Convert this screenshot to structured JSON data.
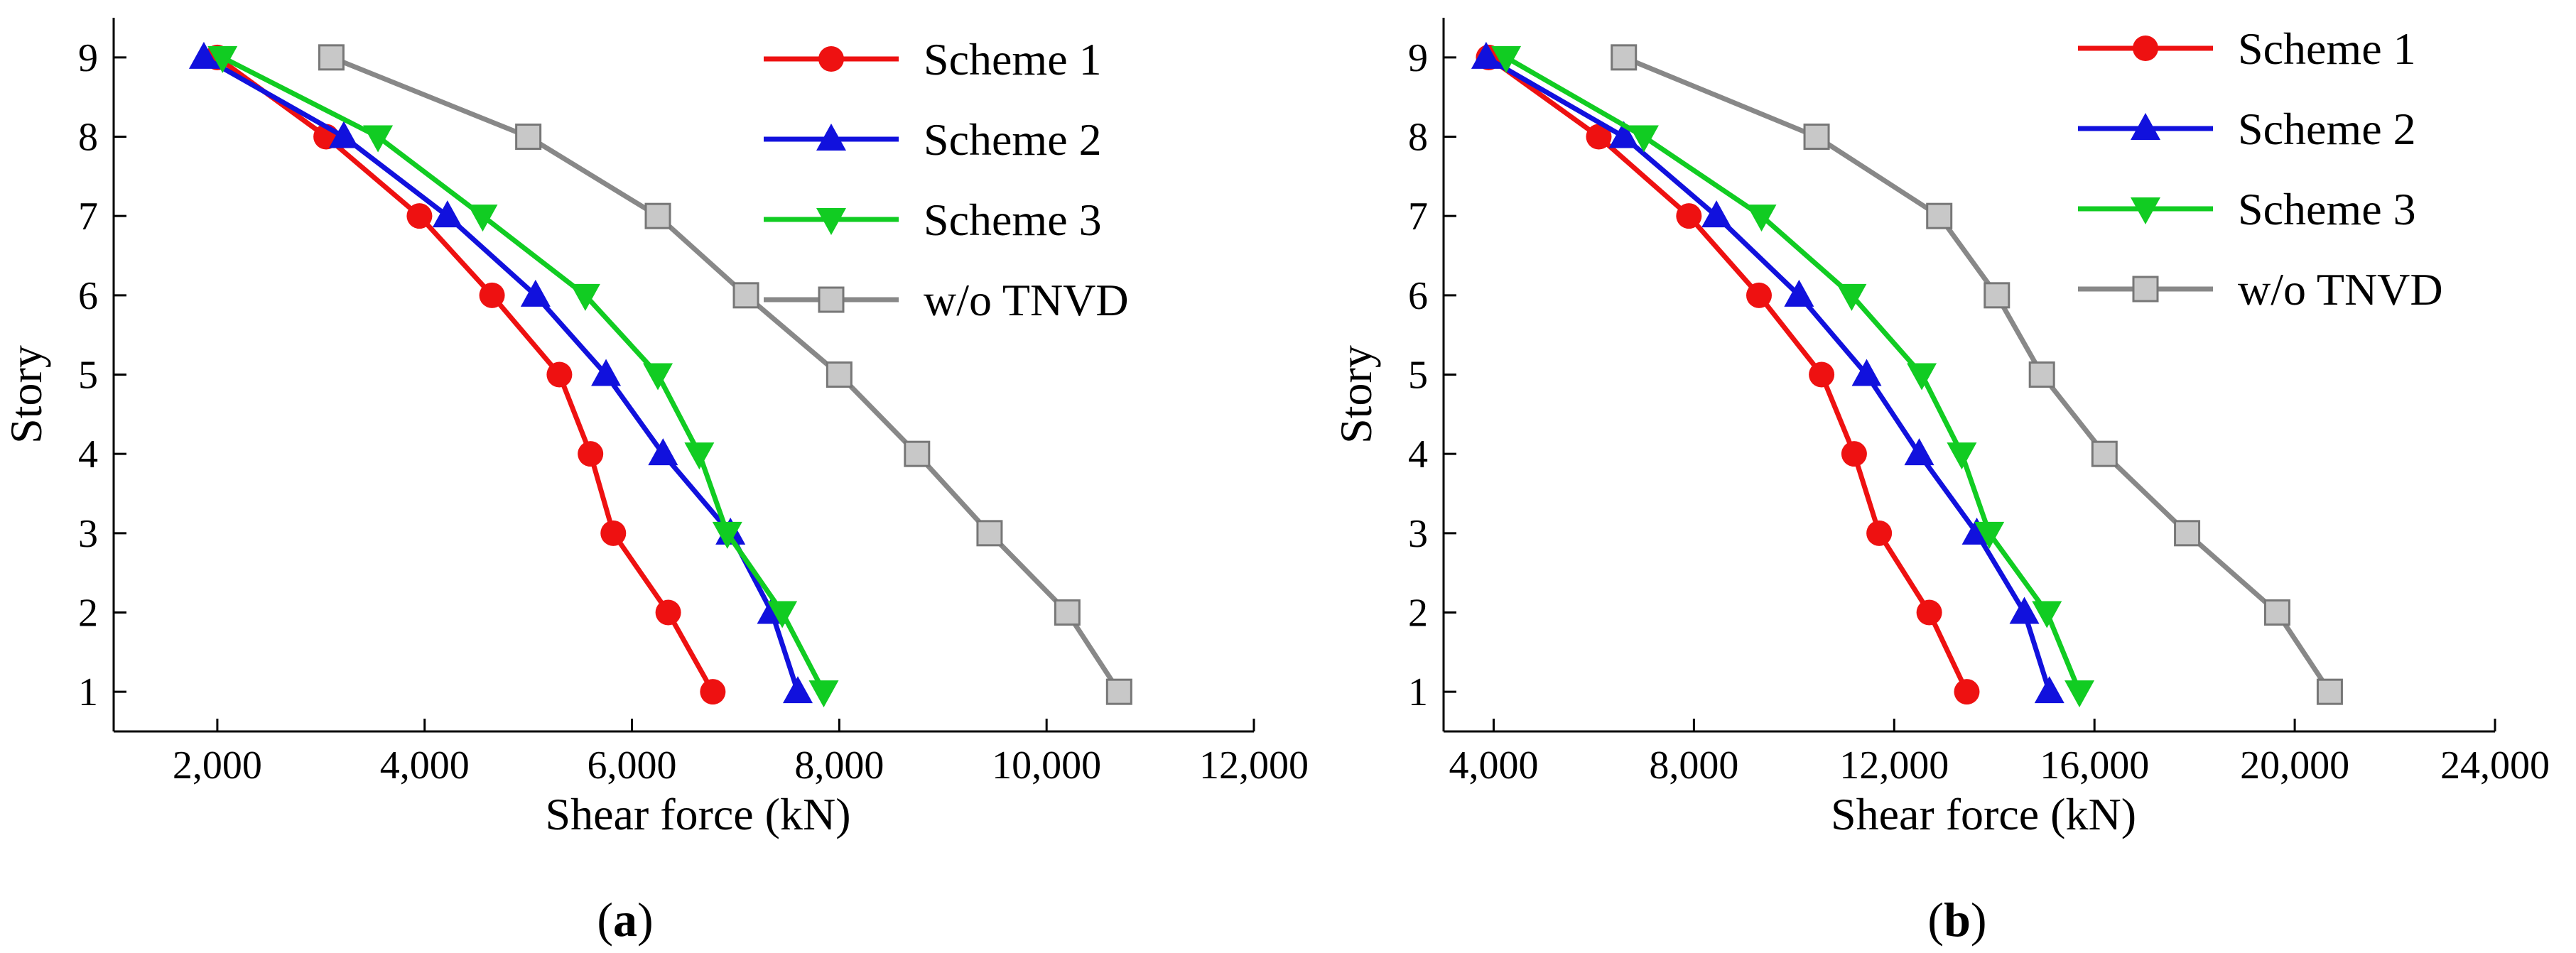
{
  "figure": {
    "panels": [
      "a",
      "b"
    ]
  },
  "chart_data": [
    {
      "type": "line",
      "panel_label": "a",
      "title": "",
      "xlabel": "Shear force (kN)",
      "ylabel": "Story",
      "xlim": [
        1000,
        12000
      ],
      "ylim": [
        0.5,
        9.5
      ],
      "xticks": [
        2000,
        4000,
        6000,
        8000,
        10000,
        12000
      ],
      "xtick_labels": [
        "2,000",
        "4,000",
        "6,000",
        "8,000",
        "10,000",
        "12,000"
      ],
      "yticks": [
        1,
        2,
        3,
        4,
        5,
        6,
        7,
        8,
        9
      ],
      "ytick_labels": [
        "1",
        "2",
        "3",
        "4",
        "5",
        "6",
        "7",
        "8",
        "9"
      ],
      "legend_position": "top-right",
      "grid": false,
      "series": [
        {
          "name": "Scheme 1",
          "color": "#ee1111",
          "marker": "circle",
          "x": [
            6780,
            6350,
            5820,
            5600,
            5300,
            4650,
            3950,
            3050,
            2000
          ],
          "y": [
            1,
            2,
            3,
            4,
            5,
            6,
            7,
            8,
            9
          ]
        },
        {
          "name": "Scheme 2",
          "color": "#1111dd",
          "marker": "triangle-up",
          "x": [
            7600,
            7350,
            6950,
            6300,
            5750,
            5070,
            4220,
            3220,
            1870
          ],
          "y": [
            1,
            2,
            3,
            4,
            5,
            6,
            7,
            8,
            9
          ]
        },
        {
          "name": "Scheme 3",
          "color": "#11cc22",
          "marker": "triangle-down",
          "x": [
            7850,
            7450,
            6920,
            6650,
            6250,
            5550,
            4560,
            3550,
            2050
          ],
          "y": [
            1,
            2,
            3,
            4,
            5,
            6,
            7,
            8,
            9
          ]
        },
        {
          "name": "w/o TNVD",
          "color": "#888888",
          "marker": "square",
          "x": [
            10700,
            10200,
            9450,
            8750,
            8000,
            7100,
            6250,
            5000,
            3100
          ],
          "y": [
            1,
            2,
            3,
            4,
            5,
            6,
            7,
            8,
            9
          ]
        }
      ]
    },
    {
      "type": "line",
      "panel_label": "b",
      "title": "",
      "xlabel": "Shear force (kN)",
      "ylabel": "Story",
      "xlim": [
        3000,
        24000
      ],
      "ylim": [
        0.5,
        9.5
      ],
      "xticks": [
        4000,
        8000,
        12000,
        16000,
        20000,
        24000
      ],
      "xtick_labels": [
        "4,000",
        "8,000",
        "12,000",
        "16,000",
        "20,000",
        "24,000"
      ],
      "yticks": [
        1,
        2,
        3,
        4,
        5,
        6,
        7,
        8,
        9
      ],
      "ytick_labels": [
        "1",
        "2",
        "3",
        "4",
        "5",
        "6",
        "7",
        "8",
        "9"
      ],
      "legend_position": "top-right",
      "grid": false,
      "series": [
        {
          "name": "Scheme 1",
          "color": "#ee1111",
          "marker": "circle",
          "x": [
            13450,
            12700,
            11700,
            11200,
            10550,
            9300,
            7900,
            6100,
            3900
          ],
          "y": [
            1,
            2,
            3,
            4,
            5,
            6,
            7,
            8,
            9
          ]
        },
        {
          "name": "Scheme 2",
          "color": "#1111dd",
          "marker": "triangle-up",
          "x": [
            15100,
            14600,
            13650,
            12500,
            11450,
            10100,
            8450,
            6600,
            3850
          ],
          "y": [
            1,
            2,
            3,
            4,
            5,
            6,
            7,
            8,
            9
          ]
        },
        {
          "name": "Scheme 3",
          "color": "#11cc22",
          "marker": "triangle-down",
          "x": [
            15700,
            15050,
            13900,
            13350,
            12550,
            11150,
            9350,
            7000,
            4250
          ],
          "y": [
            1,
            2,
            3,
            4,
            5,
            6,
            7,
            8,
            9
          ]
        },
        {
          "name": "w/o TNVD",
          "color": "#888888",
          "marker": "square",
          "x": [
            20700,
            19650,
            17850,
            16200,
            14950,
            14050,
            12900,
            10450,
            6600
          ],
          "y": [
            1,
            2,
            3,
            4,
            5,
            6,
            7,
            8,
            9
          ]
        }
      ]
    }
  ]
}
